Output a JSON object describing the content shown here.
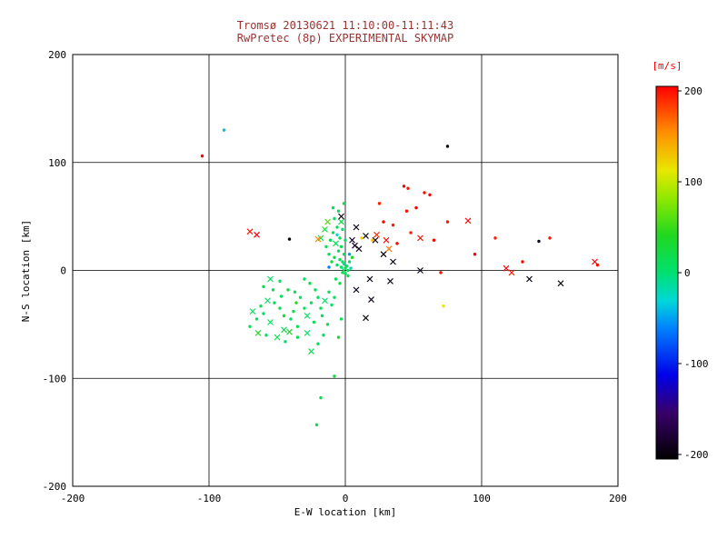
{
  "figure": {
    "background": "#ffffff",
    "title_color": "#993333",
    "axis_color": "#000000"
  },
  "chart_data": {
    "type": "scatter",
    "title": "Tromsø 20130621 11:10:00-11:11:43",
    "subtitle": "RwPretec (8p) EXPERIMENTAL SKYMAP",
    "xlabel": "E-W location [km]",
    "ylabel": "N-S location [km]",
    "xlim": [
      -200,
      200
    ],
    "ylim": [
      -200,
      200
    ],
    "xticks": [
      -200,
      -100,
      0,
      100,
      200
    ],
    "yticks": [
      -200,
      -100,
      0,
      100,
      200
    ],
    "grid": true,
    "legend_position": "none",
    "colorbar": {
      "label": "[m/s]",
      "label_color": "#ff0000",
      "min": -200,
      "max": 200,
      "ticks": [
        200,
        100,
        0,
        -100,
        -200
      ]
    },
    "colormap_stops": [
      [
        -200,
        "#000000"
      ],
      [
        -150,
        "#38006a"
      ],
      [
        -110,
        "#0000e8"
      ],
      [
        -60,
        "#0080ff"
      ],
      [
        -30,
        "#00d8d8"
      ],
      [
        0,
        "#00e070"
      ],
      [
        40,
        "#20d820"
      ],
      [
        80,
        "#90e800"
      ],
      [
        110,
        "#e8e800"
      ],
      [
        150,
        "#ff9000"
      ],
      [
        200,
        "#ff0000"
      ]
    ],
    "marker_types": {
      "d": "dot",
      "x": "cross"
    },
    "points": [
      [
        -55,
        -48,
        10,
        "x"
      ],
      [
        -60,
        -40,
        5,
        "d"
      ],
      [
        -48,
        -35,
        15,
        "d"
      ],
      [
        -52,
        -30,
        8,
        "d"
      ],
      [
        -45,
        -55,
        12,
        "x"
      ],
      [
        -40,
        -45,
        5,
        "d"
      ],
      [
        -38,
        -38,
        18,
        "d"
      ],
      [
        -35,
        -52,
        10,
        "d"
      ],
      [
        -58,
        -60,
        8,
        "d"
      ],
      [
        -50,
        -62,
        20,
        "x"
      ],
      [
        -44,
        -66,
        5,
        "d"
      ],
      [
        -30,
        -35,
        12,
        "d"
      ],
      [
        -28,
        -42,
        8,
        "x"
      ],
      [
        -25,
        -30,
        15,
        "d"
      ],
      [
        -33,
        -25,
        5,
        "d"
      ],
      [
        -37,
        -20,
        10,
        "d"
      ],
      [
        -42,
        -18,
        22,
        "d"
      ],
      [
        -47,
        -24,
        8,
        "d"
      ],
      [
        -53,
        -18,
        12,
        "d"
      ],
      [
        -57,
        -28,
        6,
        "x"
      ],
      [
        -62,
        -33,
        15,
        "d"
      ],
      [
        -65,
        -45,
        10,
        "d"
      ],
      [
        -20,
        -25,
        8,
        "d"
      ],
      [
        -18,
        -35,
        14,
        "d"
      ],
      [
        -15,
        -28,
        5,
        "x"
      ],
      [
        -22,
        -18,
        10,
        "d"
      ],
      [
        -26,
        -12,
        18,
        "d"
      ],
      [
        -30,
        -8,
        8,
        "d"
      ],
      [
        -12,
        -20,
        12,
        "d"
      ],
      [
        -10,
        -32,
        6,
        "d"
      ],
      [
        -8,
        -25,
        15,
        "d"
      ],
      [
        -35,
        -62,
        10,
        "d"
      ],
      [
        -28,
        -58,
        5,
        "x"
      ],
      [
        -23,
        -48,
        12,
        "d"
      ],
      [
        -17,
        -42,
        8,
        "d"
      ],
      [
        -13,
        -50,
        16,
        "d"
      ],
      [
        -48,
        -10,
        10,
        "d"
      ],
      [
        -55,
        -8,
        6,
        "x"
      ],
      [
        -60,
        -15,
        14,
        "d"
      ],
      [
        -68,
        -38,
        8,
        "x"
      ],
      [
        -70,
        -52,
        12,
        "d"
      ],
      [
        -16,
        -60,
        10,
        "d"
      ],
      [
        -20,
        -68,
        6,
        "d"
      ],
      [
        -25,
        -75,
        14,
        "x"
      ],
      [
        -64,
        -58,
        40,
        "x"
      ],
      [
        -45,
        -42,
        30,
        "d"
      ],
      [
        -8,
        -98,
        25,
        "d"
      ],
      [
        -18,
        -118,
        15,
        "d"
      ],
      [
        -21,
        -143,
        20,
        "d"
      ],
      [
        -5,
        -62,
        30,
        "d"
      ],
      [
        -3,
        -45,
        10,
        "d"
      ],
      [
        -36,
        -30,
        45,
        "d"
      ],
      [
        -41,
        -57,
        35,
        "x"
      ],
      [
        -5,
        55,
        15,
        "d"
      ],
      [
        -8,
        48,
        8,
        "d"
      ],
      [
        -3,
        45,
        20,
        "x"
      ],
      [
        -6,
        40,
        10,
        "d"
      ],
      [
        -2,
        38,
        5,
        "d"
      ],
      [
        -9,
        35,
        12,
        "d"
      ],
      [
        -4,
        30,
        18,
        "d"
      ],
      [
        0,
        28,
        8,
        "d"
      ],
      [
        -7,
        25,
        10,
        "x"
      ],
      [
        -3,
        22,
        15,
        "d"
      ],
      [
        -5,
        18,
        6,
        "d"
      ],
      [
        -1,
        15,
        12,
        "d"
      ],
      [
        -8,
        12,
        20,
        "d"
      ],
      [
        -4,
        10,
        8,
        "d"
      ],
      [
        -2,
        8,
        14,
        "d"
      ],
      [
        -6,
        5,
        10,
        "d"
      ],
      [
        -3,
        3,
        5,
        "d"
      ],
      [
        0,
        2,
        12,
        "d"
      ],
      [
        -1,
        0,
        8,
        "x"
      ],
      [
        2,
        0,
        16,
        "d"
      ],
      [
        1,
        4,
        10,
        "d"
      ],
      [
        3,
        8,
        6,
        "d"
      ],
      [
        -10,
        8,
        22,
        "d"
      ],
      [
        -12,
        15,
        8,
        "d"
      ],
      [
        -14,
        22,
        12,
        "d"
      ],
      [
        -15,
        38,
        30,
        "x"
      ],
      [
        -18,
        30,
        10,
        "x"
      ],
      [
        2,
        -5,
        14,
        "d"
      ],
      [
        0,
        -3,
        8,
        "d"
      ],
      [
        -2,
        -2,
        20,
        "d"
      ],
      [
        4,
        2,
        -20,
        "d"
      ],
      [
        -1,
        6,
        -10,
        "d"
      ],
      [
        5,
        12,
        40,
        "d"
      ],
      [
        -6,
        33,
        -25,
        "d"
      ],
      [
        -11,
        28,
        15,
        "d"
      ],
      [
        -13,
        45,
        60,
        "x"
      ],
      [
        -9,
        58,
        10,
        "d"
      ],
      [
        -1,
        62,
        20,
        "d"
      ],
      [
        -7,
        -8,
        12,
        "d"
      ],
      [
        -4,
        -12,
        25,
        "d"
      ],
      [
        -3,
        50,
        -195,
        "x"
      ],
      [
        8,
        40,
        -190,
        "x"
      ],
      [
        15,
        32,
        -200,
        "x"
      ],
      [
        5,
        28,
        -185,
        "x"
      ],
      [
        22,
        28,
        -195,
        "x"
      ],
      [
        10,
        20,
        -190,
        "x"
      ],
      [
        28,
        15,
        -200,
        "x"
      ],
      [
        35,
        8,
        -185,
        "x"
      ],
      [
        18,
        -8,
        -195,
        "x"
      ],
      [
        8,
        -18,
        -190,
        "x"
      ],
      [
        15,
        -44,
        -200,
        "x"
      ],
      [
        19,
        -27,
        -185,
        "x"
      ],
      [
        33,
        -10,
        -195,
        "x"
      ],
      [
        55,
        0,
        -190,
        "x"
      ],
      [
        135,
        -8,
        -195,
        "x"
      ],
      [
        158,
        -12,
        -200,
        "x"
      ],
      [
        75,
        115,
        -195,
        "d"
      ],
      [
        142,
        27,
        -190,
        "d"
      ],
      [
        -41,
        29,
        -200,
        "d"
      ],
      [
        7,
        23,
        -185,
        "x"
      ],
      [
        -105,
        106,
        200,
        "d"
      ],
      [
        -70,
        36,
        195,
        "x"
      ],
      [
        -65,
        33,
        200,
        "x"
      ],
      [
        30,
        28,
        195,
        "x"
      ],
      [
        38,
        25,
        200,
        "d"
      ],
      [
        45,
        55,
        195,
        "d"
      ],
      [
        52,
        58,
        200,
        "d"
      ],
      [
        58,
        72,
        195,
        "d"
      ],
      [
        62,
        70,
        200,
        "d"
      ],
      [
        48,
        35,
        190,
        "d"
      ],
      [
        55,
        30,
        195,
        "x"
      ],
      [
        65,
        28,
        200,
        "d"
      ],
      [
        75,
        45,
        195,
        "d"
      ],
      [
        90,
        46,
        200,
        "x"
      ],
      [
        70,
        -2,
        195,
        "d"
      ],
      [
        110,
        30,
        190,
        "d"
      ],
      [
        118,
        2,
        200,
        "x"
      ],
      [
        122,
        -2,
        195,
        "x"
      ],
      [
        130,
        8,
        200,
        "d"
      ],
      [
        185,
        5,
        195,
        "d"
      ],
      [
        183,
        8,
        200,
        "x"
      ],
      [
        25,
        62,
        190,
        "d"
      ],
      [
        43,
        78,
        200,
        "d"
      ],
      [
        46,
        76,
        195,
        "d"
      ],
      [
        28,
        45,
        200,
        "d"
      ],
      [
        35,
        42,
        190,
        "d"
      ],
      [
        150,
        30,
        195,
        "d"
      ],
      [
        95,
        15,
        200,
        "d"
      ],
      [
        23,
        33,
        185,
        "x"
      ],
      [
        20,
        28,
        130,
        "d"
      ],
      [
        72,
        -33,
        110,
        "d"
      ],
      [
        -20,
        29,
        150,
        "x"
      ],
      [
        32,
        20,
        160,
        "x"
      ],
      [
        12,
        30,
        120,
        "d"
      ],
      [
        -89,
        130,
        -40,
        "d"
      ],
      [
        -12,
        3,
        -60,
        "d"
      ],
      [
        3,
        15,
        -50,
        "d"
      ]
    ]
  }
}
